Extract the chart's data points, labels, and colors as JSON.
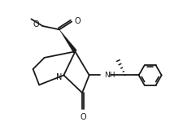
{
  "bg_color": "#ffffff",
  "line_color": "#1a1a1a",
  "line_width": 1.3,
  "figsize": [
    2.41,
    1.5
  ],
  "dpi": 100,
  "xlim": [
    0.0,
    10.5
  ],
  "ylim": [
    0.3,
    6.8
  ]
}
